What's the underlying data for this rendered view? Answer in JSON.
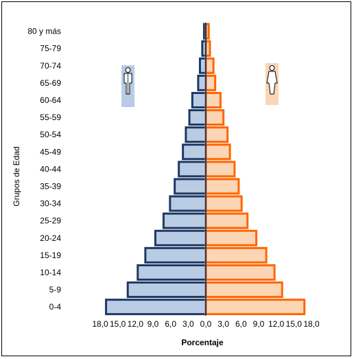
{
  "chart_data": {
    "type": "bar",
    "orientation": "horizontal",
    "layout": "population-pyramid",
    "categories": [
      "0-4",
      "5-9",
      "10-14",
      "15-19",
      "20-24",
      "25-29",
      "30-34",
      "35-39",
      "40-44",
      "45-49",
      "50-54",
      "55-59",
      "60-64",
      "65-69",
      "70-74",
      "75-79",
      "80 y más"
    ],
    "series": [
      {
        "side": "left",
        "values": [
          17.0,
          13.3,
          11.6,
          10.3,
          8.6,
          7.2,
          6.1,
          5.3,
          4.6,
          3.9,
          3.4,
          2.8,
          2.3,
          1.3,
          1.0,
          0.6,
          0.3
        ]
      },
      {
        "side": "right",
        "values": [
          16.8,
          13.0,
          11.7,
          10.3,
          8.6,
          7.1,
          6.1,
          5.6,
          4.9,
          4.1,
          3.7,
          3.0,
          2.5,
          1.6,
          1.3,
          0.7,
          0.5
        ]
      }
    ],
    "x_tick_labels": [
      "18,0",
      "15,0",
      "12,0",
      "9,0",
      "6,0",
      "3,0",
      "0,0",
      "3,0",
      "6,0",
      "9,0",
      "12,0",
      "15,0",
      "18,0"
    ],
    "xlim": [
      -18,
      18
    ],
    "xlabel": "Porcentaje",
    "ylabel": "Grupos de Edad",
    "grid": false,
    "legend": false,
    "colors": {
      "left_fill": "#b8cce4",
      "left_stroke": "#1f3864",
      "right_fill": "#fcd5b4",
      "right_stroke": "#ff6600",
      "center_line": "#1f3864"
    },
    "icons": {
      "left": "male-figure-icon",
      "right": "female-figure-icon"
    }
  }
}
